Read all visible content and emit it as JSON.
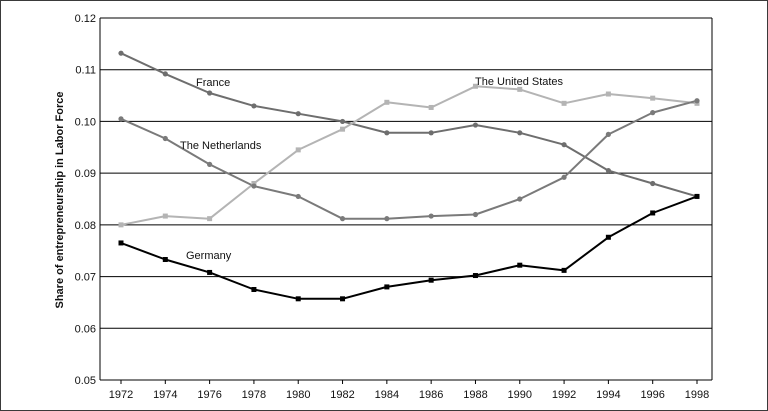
{
  "chart_data": {
    "type": "line",
    "title": "",
    "xlabel": "",
    "ylabel": "Share of entrepreneurship in Labor Force",
    "ylim": [
      0.05,
      0.12
    ],
    "yticks": [
      "0.05",
      "0.06",
      "0.07",
      "0.08",
      "0.09",
      "0.10",
      "0.11",
      "0.12"
    ],
    "x": [
      "1972",
      "1974",
      "1976",
      "1978",
      "1980",
      "1982",
      "1984",
      "1986",
      "1988",
      "1990",
      "1992",
      "1994",
      "1996",
      "1998"
    ],
    "grid": "horizontal",
    "legend": "inline labels",
    "series": [
      {
        "name": "France",
        "color": "#6e6e6e",
        "marker": "circle",
        "values": [
          0.1132,
          0.1092,
          0.1055,
          0.103,
          0.1015,
          0.1,
          0.0978,
          0.0978,
          0.0993,
          0.0978,
          0.0955,
          0.0905,
          0.088,
          0.0855
        ]
      },
      {
        "name": "The United States",
        "color": "#b4b4b4",
        "marker": "square",
        "values": [
          0.08,
          0.0817,
          0.0812,
          0.088,
          0.0945,
          0.0985,
          0.1037,
          0.1027,
          0.1068,
          0.1062,
          0.1035,
          0.1053,
          0.1045,
          0.1035
        ]
      },
      {
        "name": "The Netherlands",
        "color": "#7a7a7a",
        "marker": "circle",
        "values": [
          0.1005,
          0.0967,
          0.0917,
          0.0875,
          0.0855,
          0.0812,
          0.0812,
          0.0817,
          0.082,
          0.085,
          0.0892,
          0.0975,
          0.1017,
          0.104
        ]
      },
      {
        "name": "Germany",
        "color": "#000000",
        "marker": "square",
        "values": [
          0.0765,
          0.0733,
          0.0708,
          0.0675,
          0.0657,
          0.0657,
          0.068,
          0.0693,
          0.0702,
          0.0722,
          0.0712,
          0.0776,
          0.0823,
          0.0855
        ]
      }
    ],
    "annotations": [
      {
        "series": "France",
        "text": "France"
      },
      {
        "series": "The United States",
        "text": "The United States"
      },
      {
        "series": "The Netherlands",
        "text": "The Netherlands"
      },
      {
        "series": "Germany",
        "text": "Germany"
      }
    ]
  }
}
